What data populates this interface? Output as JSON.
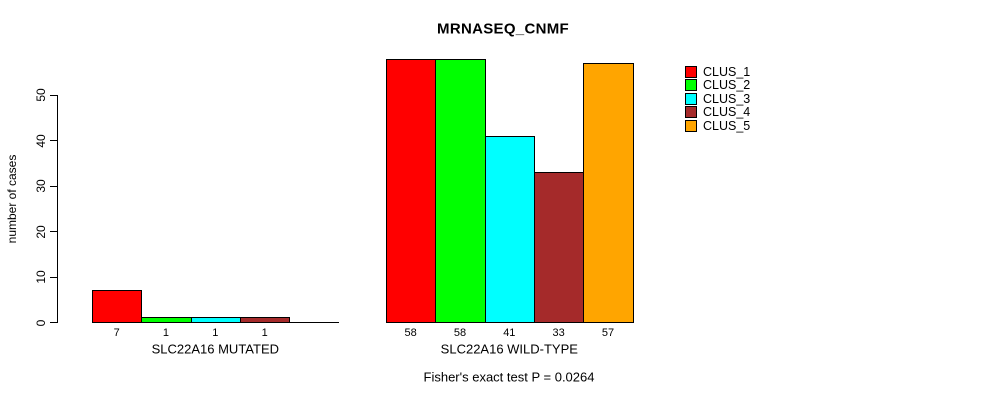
{
  "title": "MRNASEQ_CNMF",
  "subtitle": "Fisher's exact test P = 0.0264",
  "ylabel": "number of cases",
  "legend": [
    {
      "label": "CLUS_1",
      "color": "#FF0000"
    },
    {
      "label": "CLUS_2",
      "color": "#00FF00"
    },
    {
      "label": "CLUS_3",
      "color": "#00FFFF"
    },
    {
      "label": "CLUS_4",
      "color": "#A52A2A"
    },
    {
      "label": "CLUS_5",
      "color": "#FFA500"
    }
  ],
  "chart_data": {
    "type": "bar",
    "title": "MRNASEQ_CNMF",
    "subtitle": "Fisher's exact test P = 0.0264",
    "ylabel": "number of cases",
    "xlabel": "",
    "yticks": [
      0,
      10,
      20,
      30,
      40,
      50
    ],
    "ylim": [
      0,
      58
    ],
    "grid": false,
    "legend_position": "right",
    "series": [
      "CLUS_1",
      "CLUS_2",
      "CLUS_3",
      "CLUS_4",
      "CLUS_5"
    ],
    "colors": [
      "#FF0000",
      "#00FF00",
      "#00FFFF",
      "#A52A2A",
      "#FFA500"
    ],
    "groups": [
      {
        "label": "SLC22A16 MUTATED",
        "values": [
          7,
          1,
          1,
          1,
          0
        ]
      },
      {
        "label": "SLC22A16 WILD-TYPE",
        "values": [
          58,
          58,
          41,
          33,
          57
        ]
      }
    ]
  }
}
